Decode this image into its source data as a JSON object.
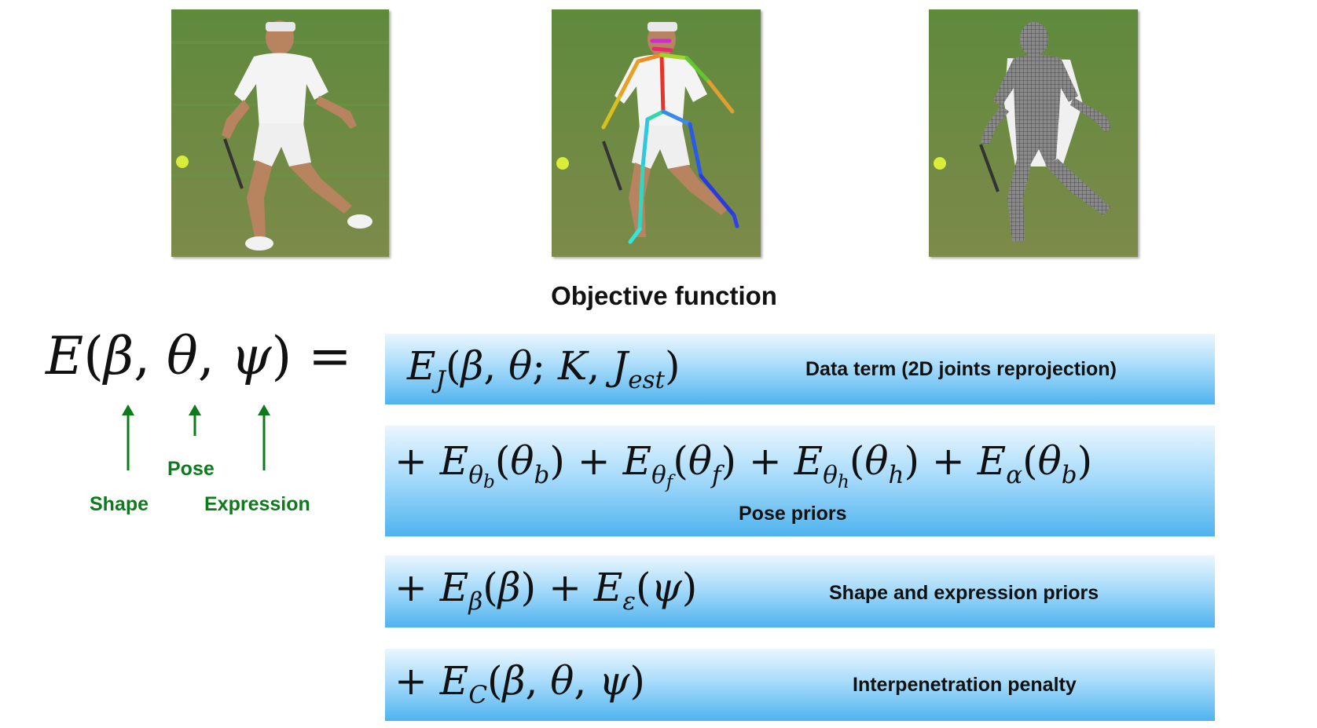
{
  "heading": "Objective function",
  "images": [
    {
      "name": "input-photo"
    },
    {
      "name": "keypoints-photo"
    },
    {
      "name": "fitted-mesh-photo"
    }
  ],
  "equation": {
    "lhs": "E(β, θ, ψ) =",
    "terms": [
      {
        "expr": "E_J(β, θ; K, J_est)",
        "label": "Data term (2D joints reprojection)"
      },
      {
        "expr": "+ E_θb(θ_b) + E_θf(θ_f) + E_θh(θ_h) + E_α(θ_b)",
        "label": "Pose priors"
      },
      {
        "expr": "+ E_β(β) + E_ε(ψ)",
        "label": "Shape and expression priors"
      },
      {
        "expr": "+ E_C(β, θ, ψ)",
        "label": "Interpenetration penalty"
      }
    ]
  },
  "annotations": {
    "shape": "Shape",
    "pose": "Pose",
    "expression": "Expression"
  },
  "colors": {
    "annotation_green": "#0d7a1c",
    "band_top": "#eaf6fe",
    "band_bottom": "#4fb3ee"
  }
}
